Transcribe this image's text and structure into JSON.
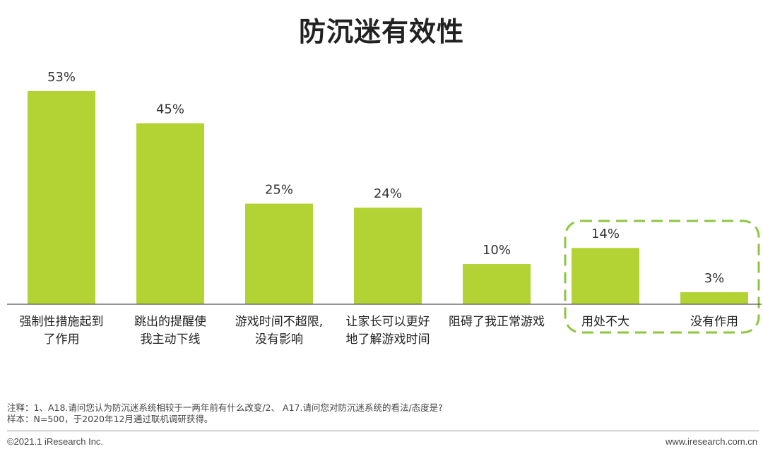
{
  "page": {
    "title": "防沉迷有效性",
    "note_line1": "注释：1、A18.请问您认为防沉迷系统相较于一两年前有什么改变/2、 A17.请问您对防沉迷系统的看法/态度是?",
    "note_line2": "样本：N=500，于2020年12月通过联机调研获得。",
    "copyright": "©2021.1 iResearch Inc.",
    "website": "www.iresearch.com.cn"
  },
  "colors": {
    "bar": "#b3d334",
    "highlight_border": "#8dc63f",
    "axis": "#555555"
  },
  "chart_data": {
    "type": "bar",
    "title": "防沉迷有效性",
    "xlabel": "",
    "ylabel": "",
    "ylim": [
      0,
      60
    ],
    "grid": false,
    "legend": "none",
    "categories": [
      [
        "强制性措施起到",
        "了作用"
      ],
      [
        "跳出的提醒使",
        "我主动下线"
      ],
      [
        "游戏时间不超限,",
        "没有影响"
      ],
      [
        "让家长可以更好",
        "地了解游戏时间"
      ],
      [
        "阻碍了我正常游戏"
      ],
      [
        "用处不大"
      ],
      [
        "没有作用"
      ]
    ],
    "values": [
      53,
      45,
      25,
      24,
      10,
      14,
      3
    ],
    "value_labels": [
      "53%",
      "45%",
      "25%",
      "24%",
      "10%",
      "14%",
      "3%"
    ],
    "highlighted_categories": [
      5,
      6
    ]
  }
}
